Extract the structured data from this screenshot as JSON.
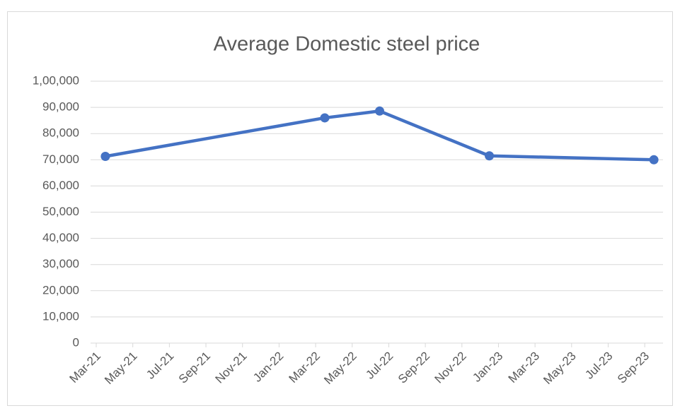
{
  "chart_data": {
    "type": "line",
    "title": "Average Domestic steel price",
    "x": [
      "2021-03",
      "2022-03",
      "2022-06",
      "2022-12",
      "2023-09"
    ],
    "series": [
      {
        "name": "Average Domestic steel price",
        "color": "#4472c4",
        "values": [
          71300,
          86000,
          88600,
          71500,
          70000
        ]
      }
    ],
    "xlim": [
      "2021-03",
      "2023-10"
    ],
    "xticks": [
      {
        "value": "2021-03",
        "label": "Mar-21"
      },
      {
        "value": "2021-05",
        "label": "May-21"
      },
      {
        "value": "2021-07",
        "label": "Jul-21"
      },
      {
        "value": "2021-09",
        "label": "Sep-21"
      },
      {
        "value": "2021-11",
        "label": "Nov-21"
      },
      {
        "value": "2022-01",
        "label": "Jan-22"
      },
      {
        "value": "2022-03",
        "label": "Mar-22"
      },
      {
        "value": "2022-05",
        "label": "May-22"
      },
      {
        "value": "2022-07",
        "label": "Jul-22"
      },
      {
        "value": "2022-09",
        "label": "Sep-22"
      },
      {
        "value": "2022-11",
        "label": "Nov-22"
      },
      {
        "value": "2023-01",
        "label": "Jan-23"
      },
      {
        "value": "2023-03",
        "label": "Mar-23"
      },
      {
        "value": "2023-05",
        "label": "May-23"
      },
      {
        "value": "2023-07",
        "label": "Jul-23"
      },
      {
        "value": "2023-09",
        "label": "Sep-23"
      }
    ],
    "ylim": [
      0,
      100000
    ],
    "yticks": [
      0,
      {
        "value": 10000,
        "label": "10,000"
      },
      {
        "value": 20000,
        "label": "20,000"
      },
      {
        "value": 30000,
        "label": "30,000"
      },
      {
        "value": 40000,
        "label": "40,000"
      },
      {
        "value": 50000,
        "label": "50,000"
      },
      {
        "value": 60000,
        "label": "60,000"
      },
      {
        "value": 70000,
        "label": "70,000"
      },
      {
        "value": 80000,
        "label": "80,000"
      },
      {
        "value": 90000,
        "label": "90,000"
      },
      {
        "value": 100000,
        "label": "1,00,000"
      }
    ],
    "grid": true
  }
}
